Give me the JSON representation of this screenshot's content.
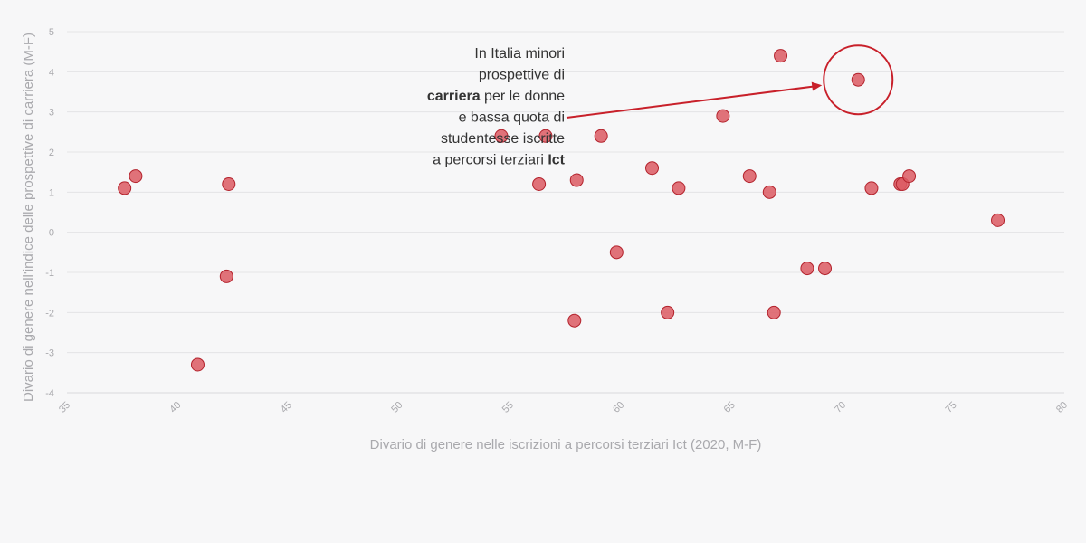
{
  "chart_data": {
    "type": "scatter",
    "xlabel": "Divario di genere nelle iscrizioni a percorsi terziari Ict (2020, M-F)",
    "ylabel": "Divario di genere nell'indice delle prospettive di carriera (M-F)",
    "xlim": [
      35,
      80
    ],
    "ylim": [
      -4,
      5
    ],
    "x_ticks": [
      35,
      40,
      45,
      50,
      55,
      60,
      65,
      70,
      75,
      80
    ],
    "y_ticks": [
      5,
      4,
      3,
      2,
      1,
      0,
      -1,
      -2,
      -3,
      -4
    ],
    "grid": true,
    "legend": "none",
    "colors": {
      "point_fill": "#dc5a63",
      "point_stroke": "#b3222c",
      "annotation": "#c8202a"
    },
    "points": [
      {
        "x": 37.6,
        "y": 1.1
      },
      {
        "x": 38.1,
        "y": 1.4
      },
      {
        "x": 40.9,
        "y": -3.3
      },
      {
        "x": 42.2,
        "y": -1.1
      },
      {
        "x": 42.3,
        "y": 1.2
      },
      {
        "x": 54.6,
        "y": 2.4
      },
      {
        "x": 56.3,
        "y": 1.2
      },
      {
        "x": 56.6,
        "y": 2.4
      },
      {
        "x": 57.9,
        "y": -2.2
      },
      {
        "x": 58.0,
        "y": 1.3
      },
      {
        "x": 59.1,
        "y": 2.4
      },
      {
        "x": 59.8,
        "y": -0.5
      },
      {
        "x": 61.4,
        "y": 1.6
      },
      {
        "x": 62.1,
        "y": -2.0
      },
      {
        "x": 62.6,
        "y": 1.1
      },
      {
        "x": 64.6,
        "y": 2.9
      },
      {
        "x": 65.8,
        "y": 1.4
      },
      {
        "x": 66.7,
        "y": 1.0
      },
      {
        "x": 66.9,
        "y": -2.0
      },
      {
        "x": 67.2,
        "y": 4.4
      },
      {
        "x": 68.4,
        "y": -0.9
      },
      {
        "x": 69.2,
        "y": -0.9
      },
      {
        "x": 70.7,
        "y": 3.8
      },
      {
        "x": 71.3,
        "y": 1.1
      },
      {
        "x": 72.6,
        "y": 1.2
      },
      {
        "x": 72.7,
        "y": 1.2
      },
      {
        "x": 73.0,
        "y": 1.4
      },
      {
        "x": 77.0,
        "y": 0.3
      }
    ],
    "annotation": {
      "lines": [
        [
          {
            "text": "In Italia minori",
            "bold": false
          }
        ],
        [
          {
            "text": "prospettive di",
            "bold": false
          }
        ],
        [
          {
            "text": "carriera",
            "bold": true
          },
          {
            "text": " per le donne",
            "bold": false
          }
        ],
        [
          {
            "text": "e bassa quota di",
            "bold": false
          }
        ],
        [
          {
            "text": "studentesse iscritte",
            "bold": false
          }
        ],
        [
          {
            "text": "a percorsi terziari ",
            "bold": false
          },
          {
            "text": "Ict",
            "bold": true
          }
        ]
      ],
      "target": {
        "x": 70.7,
        "y": 3.8
      }
    }
  }
}
